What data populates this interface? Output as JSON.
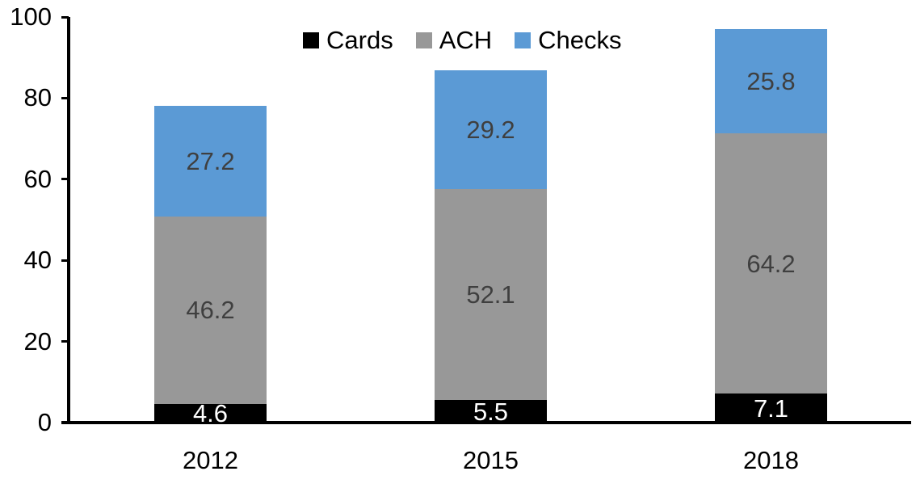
{
  "chart_data": {
    "type": "bar",
    "stacked": true,
    "title": "",
    "categories": [
      "2012",
      "2015",
      "2018"
    ],
    "series": [
      {
        "name": "Cards",
        "color": "#000000",
        "label_color": "#FFFFFF",
        "values": [
          4.6,
          5.5,
          7.1
        ]
      },
      {
        "name": "ACH",
        "color": "#989898",
        "label_color": "#3F3F3F",
        "values": [
          46.2,
          52.1,
          64.2
        ]
      },
      {
        "name": "Checks",
        "color": "#5B9AD5",
        "label_color": "#3F3F3F",
        "values": [
          27.2,
          29.2,
          25.8
        ]
      }
    ],
    "totals": [
      78.0,
      86.8,
      97.1
    ],
    "ylim": [
      0,
      100
    ],
    "yticks": [
      0,
      20,
      40,
      60,
      80,
      100
    ],
    "grid": false,
    "legend_position": "top-center",
    "axis_color": "#000000",
    "background": "#FFFFFF",
    "value_decimals": 1
  }
}
